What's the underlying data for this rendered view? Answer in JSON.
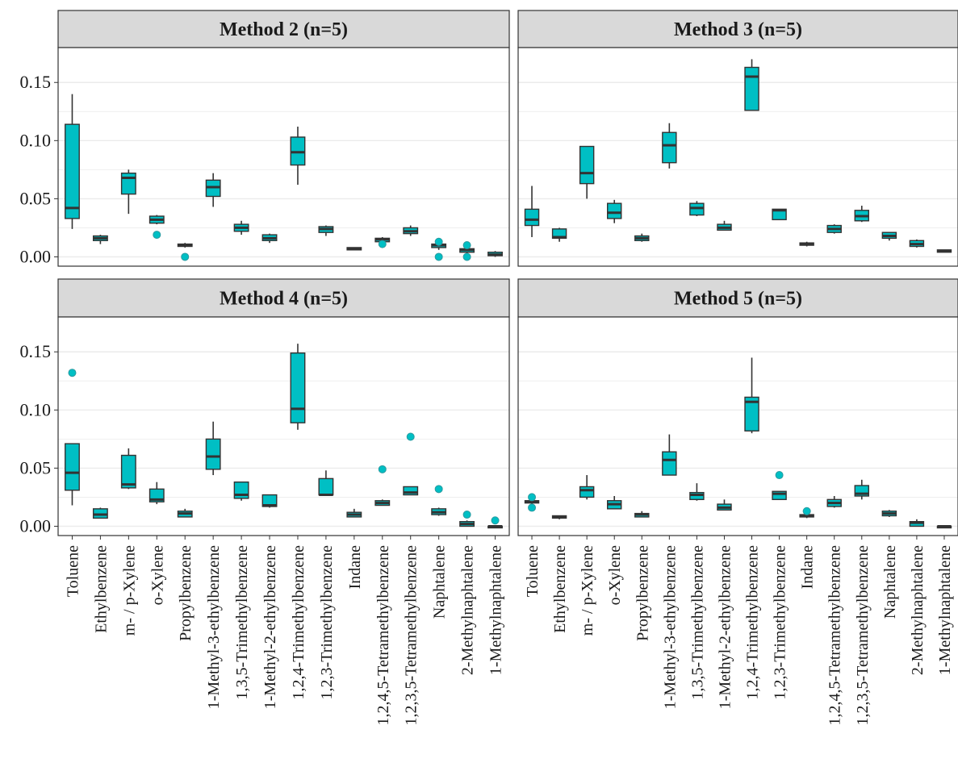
{
  "chart_data": {
    "type": "boxplot",
    "layout": "facet-grid-2x2",
    "box_fill": "#00BFC4",
    "box_stroke": "#333333",
    "strip_fill": "#D9D9D9",
    "grid_color": "#EBEBEB",
    "ylim": [
      -0.008,
      0.18
    ],
    "y_ticks": [
      0.0,
      0.05,
      0.1,
      0.15
    ],
    "y_tick_labels": [
      "0.00",
      "0.05",
      "0.10",
      "0.15"
    ],
    "categories": [
      "Toluene",
      "Ethylbenzene",
      "m- / p-Xylene",
      "o-Xylene",
      "Propylbenzene",
      "1-Methyl-3-ethylbenzene",
      "1,3,5-Trimethylbenzene",
      "1-Methyl-2-ethylbenzene",
      "1,2,4-Trimethylbenzene",
      "1,2,3-Trimethylbenzene",
      "Indane",
      "1,2,4,5-Tetramethylbenzene",
      "1,2,3,5-Tetramethylbenzene",
      "Naphtalene",
      "2-Methylnaphtalene",
      "1-Methylnaphtalene"
    ],
    "facets": [
      {
        "title": "Method 2 (n=5)",
        "boxes": [
          {
            "lo": 0.024,
            "q1": 0.033,
            "med": 0.042,
            "q3": 0.114,
            "hi": 0.14,
            "out": []
          },
          {
            "lo": 0.011,
            "q1": 0.014,
            "med": 0.016,
            "q3": 0.018,
            "hi": 0.019,
            "out": []
          },
          {
            "lo": 0.037,
            "q1": 0.054,
            "med": 0.068,
            "q3": 0.072,
            "hi": 0.075,
            "out": []
          },
          {
            "lo": 0.028,
            "q1": 0.029,
            "med": 0.032,
            "q3": 0.035,
            "hi": 0.036,
            "out": [
              0.019
            ]
          },
          {
            "lo": 0.008,
            "q1": 0.009,
            "med": 0.01,
            "q3": 0.011,
            "hi": 0.012,
            "out": [
              0.0
            ]
          },
          {
            "lo": 0.043,
            "q1": 0.052,
            "med": 0.06,
            "q3": 0.066,
            "hi": 0.072,
            "out": []
          },
          {
            "lo": 0.019,
            "q1": 0.022,
            "med": 0.025,
            "q3": 0.028,
            "hi": 0.031,
            "out": []
          },
          {
            "lo": 0.012,
            "q1": 0.014,
            "med": 0.016,
            "q3": 0.019,
            "hi": 0.02,
            "out": []
          },
          {
            "lo": 0.062,
            "q1": 0.079,
            "med": 0.09,
            "q3": 0.103,
            "hi": 0.112,
            "out": []
          },
          {
            "lo": 0.018,
            "q1": 0.021,
            "med": 0.024,
            "q3": 0.026,
            "hi": 0.027,
            "out": []
          },
          {
            "lo": 0.006,
            "q1": 0.006,
            "med": 0.007,
            "q3": 0.008,
            "hi": 0.008,
            "out": []
          },
          {
            "lo": 0.013,
            "q1": 0.013,
            "med": 0.015,
            "q3": 0.016,
            "hi": 0.017,
            "out": [
              0.011
            ]
          },
          {
            "lo": 0.018,
            "q1": 0.02,
            "med": 0.022,
            "q3": 0.025,
            "hi": 0.027,
            "out": []
          },
          {
            "lo": 0.006,
            "q1": 0.008,
            "med": 0.01,
            "q3": 0.011,
            "hi": 0.012,
            "out": [
              0.0,
              0.013
            ]
          },
          {
            "lo": 0.003,
            "q1": 0.004,
            "med": 0.006,
            "q3": 0.007,
            "hi": 0.008,
            "out": [
              0.0,
              0.01
            ]
          },
          {
            "lo": 0.0,
            "q1": 0.001,
            "med": 0.002,
            "q3": 0.004,
            "hi": 0.005,
            "out": []
          }
        ]
      },
      {
        "title": "Method 3 (n=5)",
        "boxes": [
          {
            "lo": 0.017,
            "q1": 0.027,
            "med": 0.032,
            "q3": 0.041,
            "hi": 0.061,
            "out": []
          },
          {
            "lo": 0.013,
            "q1": 0.016,
            "med": 0.017,
            "q3": 0.024,
            "hi": 0.025,
            "out": []
          },
          {
            "lo": 0.05,
            "q1": 0.063,
            "med": 0.072,
            "q3": 0.095,
            "hi": 0.095,
            "out": []
          },
          {
            "lo": 0.029,
            "q1": 0.033,
            "med": 0.038,
            "q3": 0.046,
            "hi": 0.049,
            "out": []
          },
          {
            "lo": 0.013,
            "q1": 0.014,
            "med": 0.016,
            "q3": 0.018,
            "hi": 0.02,
            "out": []
          },
          {
            "lo": 0.076,
            "q1": 0.081,
            "med": 0.096,
            "q3": 0.107,
            "hi": 0.115,
            "out": []
          },
          {
            "lo": 0.035,
            "q1": 0.036,
            "med": 0.042,
            "q3": 0.046,
            "hi": 0.048,
            "out": []
          },
          {
            "lo": 0.023,
            "q1": 0.023,
            "med": 0.025,
            "q3": 0.028,
            "hi": 0.031,
            "out": []
          },
          {
            "lo": 0.126,
            "q1": 0.126,
            "med": 0.155,
            "q3": 0.163,
            "hi": 0.17,
            "out": []
          },
          {
            "lo": 0.032,
            "q1": 0.032,
            "med": 0.04,
            "q3": 0.041,
            "hi": 0.041,
            "out": []
          },
          {
            "lo": 0.009,
            "q1": 0.01,
            "med": 0.011,
            "q3": 0.012,
            "hi": 0.013,
            "out": []
          },
          {
            "lo": 0.02,
            "q1": 0.021,
            "med": 0.024,
            "q3": 0.027,
            "hi": 0.028,
            "out": []
          },
          {
            "lo": 0.03,
            "q1": 0.031,
            "med": 0.035,
            "q3": 0.04,
            "hi": 0.044,
            "out": []
          },
          {
            "lo": 0.014,
            "q1": 0.016,
            "med": 0.018,
            "q3": 0.021,
            "hi": 0.021,
            "out": []
          },
          {
            "lo": 0.008,
            "q1": 0.009,
            "med": 0.011,
            "q3": 0.014,
            "hi": 0.015,
            "out": []
          },
          {
            "lo": 0.004,
            "q1": 0.004,
            "med": 0.005,
            "q3": 0.006,
            "hi": 0.006,
            "out": []
          }
        ]
      },
      {
        "title": "Method 4 (n=5)",
        "boxes": [
          {
            "lo": 0.018,
            "q1": 0.031,
            "med": 0.046,
            "q3": 0.071,
            "hi": 0.071,
            "out": [
              0.132
            ]
          },
          {
            "lo": 0.007,
            "q1": 0.007,
            "med": 0.01,
            "q3": 0.015,
            "hi": 0.016,
            "out": []
          },
          {
            "lo": 0.032,
            "q1": 0.033,
            "med": 0.036,
            "q3": 0.061,
            "hi": 0.067,
            "out": []
          },
          {
            "lo": 0.019,
            "q1": 0.021,
            "med": 0.023,
            "q3": 0.032,
            "hi": 0.038,
            "out": []
          },
          {
            "lo": 0.008,
            "q1": 0.008,
            "med": 0.011,
            "q3": 0.013,
            "hi": 0.015,
            "out": []
          },
          {
            "lo": 0.044,
            "q1": 0.049,
            "med": 0.06,
            "q3": 0.075,
            "hi": 0.09,
            "out": []
          },
          {
            "lo": 0.022,
            "q1": 0.024,
            "med": 0.027,
            "q3": 0.038,
            "hi": 0.038,
            "out": []
          },
          {
            "lo": 0.016,
            "q1": 0.017,
            "med": 0.018,
            "q3": 0.027,
            "hi": 0.027,
            "out": []
          },
          {
            "lo": 0.083,
            "q1": 0.089,
            "med": 0.101,
            "q3": 0.149,
            "hi": 0.157,
            "out": []
          },
          {
            "lo": 0.026,
            "q1": 0.027,
            "med": 0.027,
            "q3": 0.041,
            "hi": 0.048,
            "out": []
          },
          {
            "lo": 0.008,
            "q1": 0.008,
            "med": 0.01,
            "q3": 0.012,
            "hi": 0.015,
            "out": []
          },
          {
            "lo": 0.018,
            "q1": 0.018,
            "med": 0.02,
            "q3": 0.022,
            "hi": 0.023,
            "out": [
              0.049
            ]
          },
          {
            "lo": 0.027,
            "q1": 0.027,
            "med": 0.029,
            "q3": 0.034,
            "hi": 0.034,
            "out": [
              0.077
            ]
          },
          {
            "lo": 0.009,
            "q1": 0.01,
            "med": 0.012,
            "q3": 0.015,
            "hi": 0.016,
            "out": [
              0.032
            ]
          },
          {
            "lo": 0.0,
            "q1": 0.0,
            "med": 0.002,
            "q3": 0.004,
            "hi": 0.005,
            "out": [
              0.01
            ]
          },
          {
            "lo": 0.0,
            "q1": 0.0,
            "med": 0.0,
            "q3": 0.0,
            "hi": 0.0,
            "out": [
              0.005
            ]
          }
        ]
      },
      {
        "title": "Method 5 (n=5)",
        "boxes": [
          {
            "lo": 0.019,
            "q1": 0.02,
            "med": 0.021,
            "q3": 0.022,
            "hi": 0.023,
            "out": [
              0.016,
              0.025
            ]
          },
          {
            "lo": 0.006,
            "q1": 0.007,
            "med": 0.008,
            "q3": 0.009,
            "hi": 0.009,
            "out": []
          },
          {
            "lo": 0.023,
            "q1": 0.025,
            "med": 0.031,
            "q3": 0.034,
            "hi": 0.044,
            "out": []
          },
          {
            "lo": 0.015,
            "q1": 0.015,
            "med": 0.019,
            "q3": 0.022,
            "hi": 0.026,
            "out": []
          },
          {
            "lo": 0.008,
            "q1": 0.008,
            "med": 0.01,
            "q3": 0.011,
            "hi": 0.013,
            "out": []
          },
          {
            "lo": 0.044,
            "q1": 0.044,
            "med": 0.057,
            "q3": 0.064,
            "hi": 0.079,
            "out": []
          },
          {
            "lo": 0.022,
            "q1": 0.023,
            "med": 0.027,
            "q3": 0.029,
            "hi": 0.037,
            "out": []
          },
          {
            "lo": 0.014,
            "q1": 0.014,
            "med": 0.016,
            "q3": 0.019,
            "hi": 0.023,
            "out": []
          },
          {
            "lo": 0.08,
            "q1": 0.082,
            "med": 0.107,
            "q3": 0.111,
            "hi": 0.145,
            "out": []
          },
          {
            "lo": 0.023,
            "q1": 0.023,
            "med": 0.028,
            "q3": 0.03,
            "hi": 0.03,
            "out": [
              0.044
            ]
          },
          {
            "lo": 0.007,
            "q1": 0.008,
            "med": 0.009,
            "q3": 0.01,
            "hi": 0.01,
            "out": [
              0.013
            ]
          },
          {
            "lo": 0.016,
            "q1": 0.017,
            "med": 0.02,
            "q3": 0.023,
            "hi": 0.026,
            "out": []
          },
          {
            "lo": 0.023,
            "q1": 0.026,
            "med": 0.028,
            "q3": 0.035,
            "hi": 0.04,
            "out": []
          },
          {
            "lo": 0.008,
            "q1": 0.009,
            "med": 0.011,
            "q3": 0.013,
            "hi": 0.014,
            "out": []
          },
          {
            "lo": 0.0,
            "q1": 0.0,
            "med": 0.003,
            "q3": 0.004,
            "hi": 0.006,
            "out": []
          },
          {
            "lo": 0.0,
            "q1": 0.0,
            "med": 0.0,
            "q3": 0.0,
            "hi": 0.0,
            "out": []
          }
        ]
      }
    ]
  }
}
